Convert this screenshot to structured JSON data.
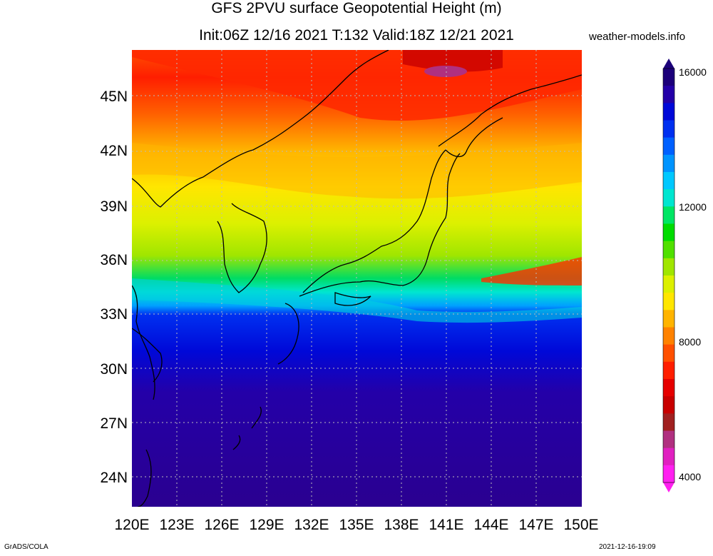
{
  "title_line1": "GFS 2PVU surface Geopotential Height (m)",
  "title_line2": "Init:06Z 12/16 2021 T:132 Valid:18Z 12/21 2021",
  "site_label": "weather-models.info",
  "lat_labels": [
    "45N",
    "42N",
    "39N",
    "36N",
    "33N",
    "30N",
    "27N",
    "24N"
  ],
  "lon_labels": [
    "120E",
    "123E",
    "126E",
    "129E",
    "132E",
    "135E",
    "138E",
    "141E",
    "144E",
    "147E",
    "150E"
  ],
  "colorbar": {
    "labels": [
      "16000",
      "12000",
      "8000",
      "4000"
    ],
    "colors_top_to_bottom": [
      "#1c007a",
      "#2400a8",
      "#0008d8",
      "#0030f0",
      "#0060ff",
      "#0094ff",
      "#00c8ff",
      "#00e6d0",
      "#00e664",
      "#00dc00",
      "#50e000",
      "#a0e600",
      "#dcf000",
      "#ffe600",
      "#ffb400",
      "#ff8200",
      "#ff5000",
      "#ff1e00",
      "#e60000",
      "#c80000",
      "#a02020",
      "#b03080",
      "#e020c0",
      "#ff20f0"
    ]
  },
  "credit_left": "GrADS/COLA",
  "credit_right": "2021-12-16-19:09"
}
